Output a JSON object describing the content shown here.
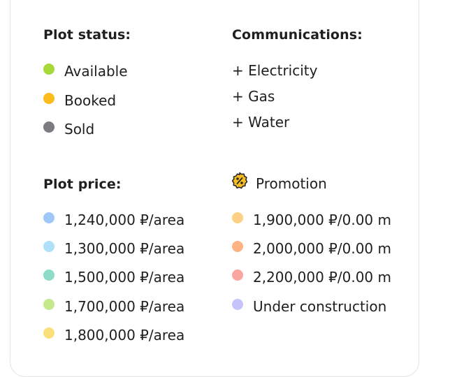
{
  "status": {
    "title": "Plot status:",
    "items": [
      {
        "label": "Available",
        "color": "#a8d93b"
      },
      {
        "label": "Booked",
        "color": "#fbbc1d"
      },
      {
        "label": "Sold",
        "color": "#7c7c80"
      }
    ]
  },
  "communications": {
    "title": "Communications:",
    "items": [
      "+ Electricity",
      "+ Gas",
      "+ Water"
    ]
  },
  "price": {
    "title": "Plot price:",
    "items": [
      {
        "label": "1,240,000 ₽/area",
        "color": "#9ec8f7"
      },
      {
        "label": "1,300,000 ₽/area",
        "color": "#aee0f8"
      },
      {
        "label": "1,500,000 ₽/area",
        "color": "#8ddbc8"
      },
      {
        "label": "1,700,000 ₽/area",
        "color": "#c6e88c"
      },
      {
        "label": "1,800,000 ₽/area",
        "color": "#fbdf7c"
      }
    ]
  },
  "promotion": {
    "title": "Promotion",
    "icon": "percent-badge-icon",
    "icon_color": "#f8bd22",
    "items": [
      {
        "label": "1,900,000 ₽/0.00 m",
        "color": "#fdd185"
      },
      {
        "label": "2,000,000 ₽/0.00 m",
        "color": "#fdb382"
      },
      {
        "label": "2,200,000 ₽/0.00 m",
        "color": "#fba5a3"
      },
      {
        "label": "Under construction",
        "color": "#c6c3fb"
      }
    ]
  }
}
